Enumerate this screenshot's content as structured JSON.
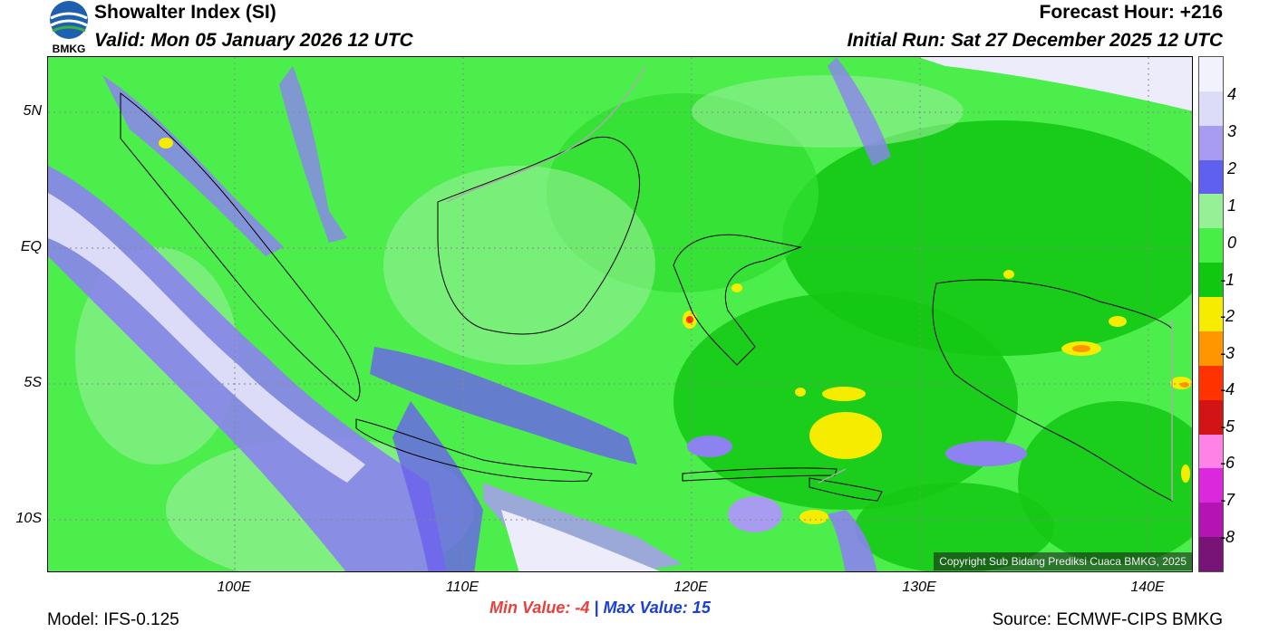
{
  "header": {
    "title": "Showalter Index (SI)",
    "valid": "Valid: Mon 05 January 2026 12 UTC",
    "forecast_hour": "Forecast Hour: +216",
    "initial_run": "Initial Run: Sat 27 December 2025 12 UTC",
    "logo_text": "BMKG"
  },
  "map": {
    "lat_labels": [
      "5N",
      "EQ",
      "5S",
      "10S"
    ],
    "lon_labels": [
      "100E",
      "110E",
      "120E",
      "130E",
      "140E"
    ],
    "copyright": "Copyright Sub Bidang Prediksi Cuaca BMKG, 2025"
  },
  "colorbar": {
    "labels": [
      "4",
      "3",
      "2",
      "1",
      "0",
      "-1",
      "-2",
      "-3",
      "-4",
      "-5",
      "-6",
      "-7",
      "-8"
    ],
    "colors": [
      "#f2f2fc",
      "#dcdcf8",
      "#a89cf0",
      "#6060f0",
      "#96f096",
      "#46ee46",
      "#10c810",
      "#f5ec00",
      "#ff9600",
      "#ff3200",
      "#d21414",
      "#ff82e6",
      "#dc28dc",
      "#b414b4",
      "#781478"
    ]
  },
  "footer": {
    "min_label": "Min Value:  -4",
    "separator": "|",
    "max_label": "Max Value:  15",
    "model": "Model: IFS-0.125",
    "source": "Source: ECMWF-CIPS BMKG"
  }
}
